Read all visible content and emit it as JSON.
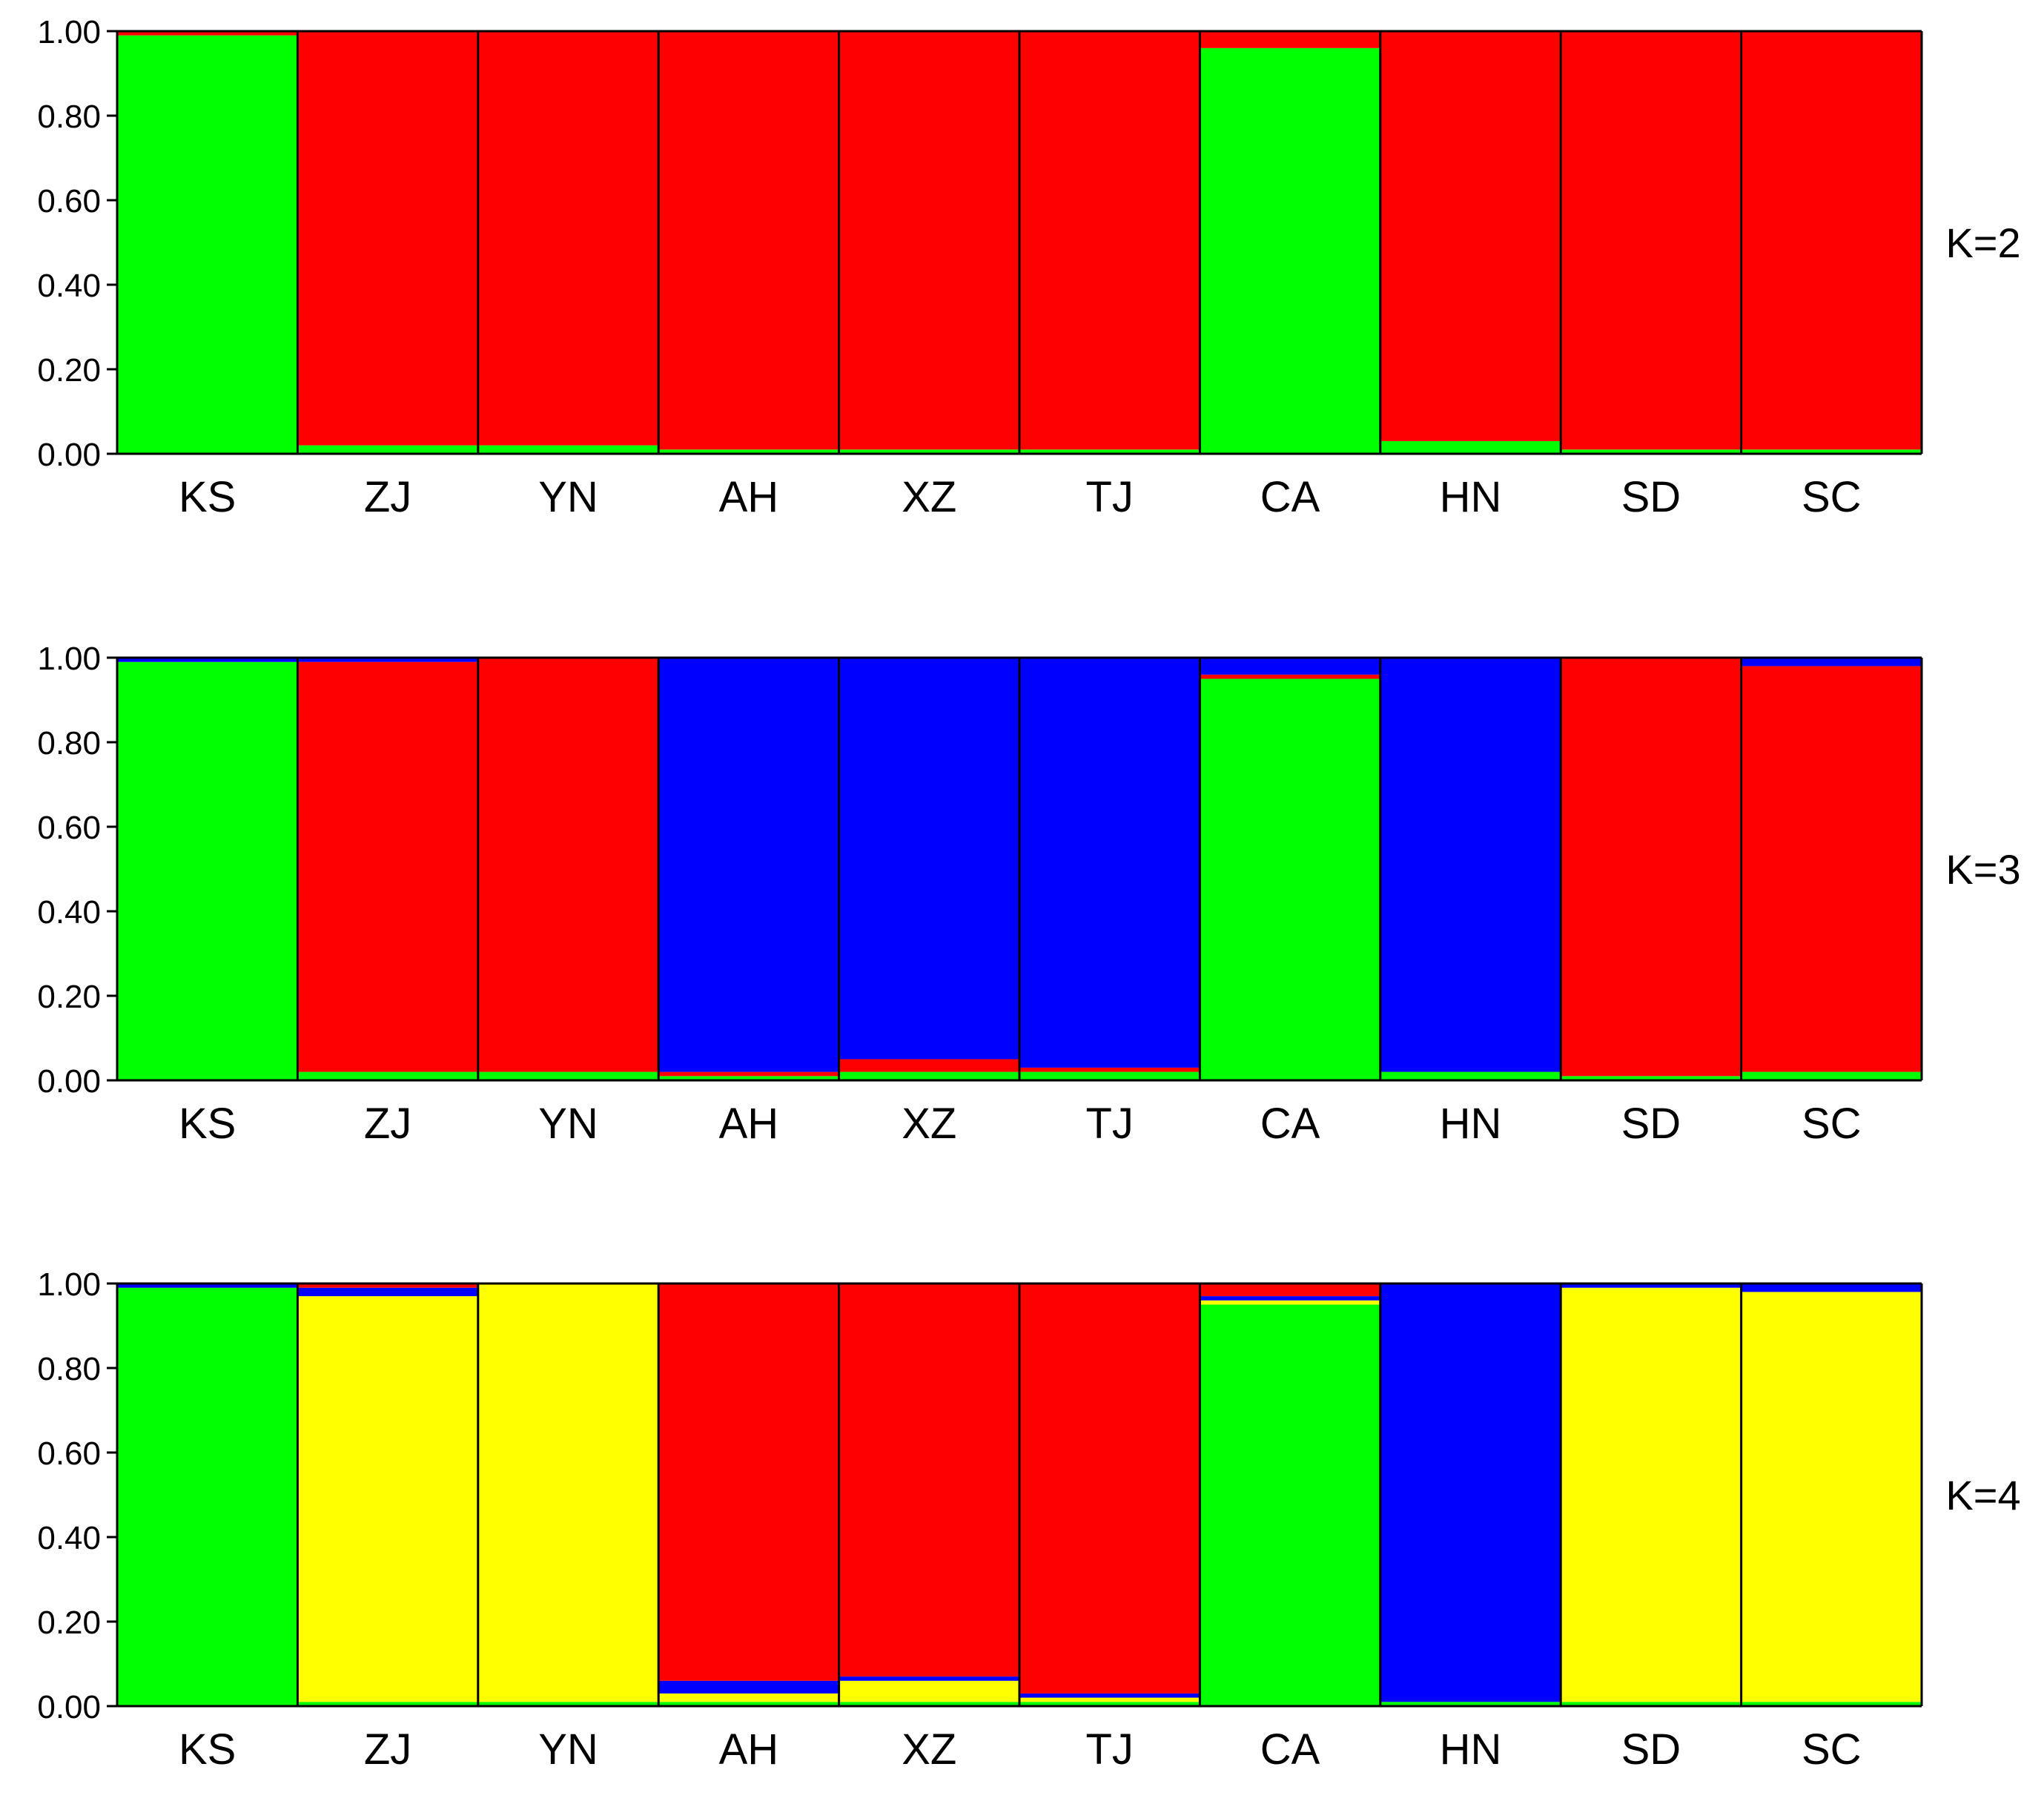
{
  "colors": {
    "red": "#ff0000",
    "green": "#00ff00",
    "blue": "#0000ff",
    "yellow": "#ffff00"
  },
  "chart_data": [
    {
      "type": "stacked-bar",
      "label": "K=2",
      "ylim": [
        0,
        1
      ],
      "y_ticks": [
        "0.00",
        "0.20",
        "0.40",
        "0.60",
        "0.80",
        "1.00"
      ],
      "categories": [
        "KS",
        "ZJ",
        "YN",
        "AH",
        "XZ",
        "TJ",
        "CA",
        "HN",
        "SD",
        "SC"
      ],
      "series_colors": [
        "green",
        "red"
      ],
      "population_proportions": [
        [
          0.99,
          0.01
        ],
        [
          0.02,
          0.98
        ],
        [
          0.02,
          0.98
        ],
        [
          0.01,
          0.99
        ],
        [
          0.01,
          0.99
        ],
        [
          0.01,
          0.99
        ],
        [
          0.96,
          0.04
        ],
        [
          0.03,
          0.97
        ],
        [
          0.01,
          0.99
        ],
        [
          0.01,
          0.99
        ]
      ]
    },
    {
      "type": "stacked-bar",
      "label": "K=3",
      "ylim": [
        0,
        1
      ],
      "y_ticks": [
        "0.00",
        "0.20",
        "0.40",
        "0.60",
        "0.80",
        "1.00"
      ],
      "categories": [
        "KS",
        "ZJ",
        "YN",
        "AH",
        "XZ",
        "TJ",
        "CA",
        "HN",
        "SD",
        "SC"
      ],
      "series_colors": [
        "green",
        "red",
        "blue"
      ],
      "population_proportions": [
        [
          0.99,
          0.0,
          0.01
        ],
        [
          0.02,
          0.97,
          0.01
        ],
        [
          0.02,
          0.98,
          0.0
        ],
        [
          0.01,
          0.01,
          0.98
        ],
        [
          0.02,
          0.03,
          0.95
        ],
        [
          0.02,
          0.01,
          0.97
        ],
        [
          0.95,
          0.01,
          0.04
        ],
        [
          0.02,
          0.0,
          0.98
        ],
        [
          0.01,
          0.99,
          0.0
        ],
        [
          0.02,
          0.96,
          0.02
        ]
      ]
    },
    {
      "type": "stacked-bar",
      "label": "K=4",
      "ylim": [
        0,
        1
      ],
      "y_ticks": [
        "0.00",
        "0.20",
        "0.40",
        "0.60",
        "0.80",
        "1.00"
      ],
      "categories": [
        "KS",
        "ZJ",
        "YN",
        "AH",
        "XZ",
        "TJ",
        "CA",
        "HN",
        "SD",
        "SC"
      ],
      "series_colors": [
        "green",
        "yellow",
        "blue",
        "red"
      ],
      "population_proportions": [
        [
          0.99,
          0.0,
          0.01,
          0.0
        ],
        [
          0.01,
          0.96,
          0.02,
          0.01
        ],
        [
          0.01,
          0.99,
          0.0,
          0.0
        ],
        [
          0.01,
          0.02,
          0.03,
          0.94
        ],
        [
          0.01,
          0.05,
          0.01,
          0.93
        ],
        [
          0.01,
          0.01,
          0.01,
          0.97
        ],
        [
          0.95,
          0.01,
          0.01,
          0.03
        ],
        [
          0.01,
          0.0,
          0.99,
          0.0
        ],
        [
          0.01,
          0.98,
          0.01,
          0.0
        ],
        [
          0.01,
          0.97,
          0.02,
          0.0
        ]
      ]
    }
  ]
}
